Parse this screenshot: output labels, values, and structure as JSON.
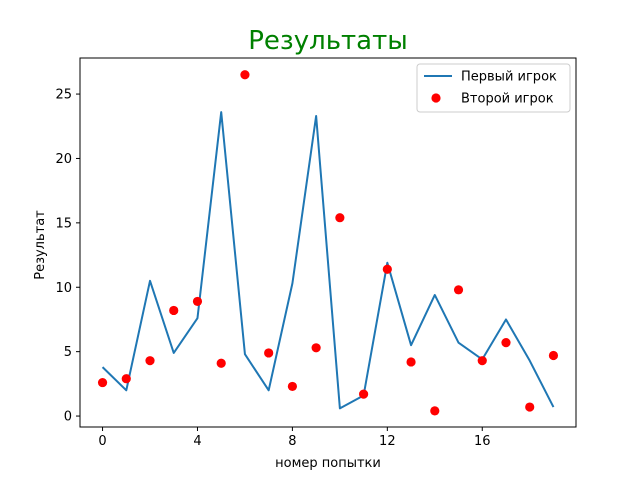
{
  "chart_data": {
    "type": "line",
    "title": "Результаты",
    "title_color": "#008000",
    "xlabel": "номер попытки",
    "ylabel": "Результат",
    "xlim": [
      -0.95,
      19.95
    ],
    "ylim": [
      -0.85,
      27.8
    ],
    "xticks": [
      0,
      4,
      8,
      12,
      16
    ],
    "yticks": [
      0,
      5,
      10,
      15,
      20,
      25
    ],
    "grid": false,
    "legend_position": "top-right",
    "series": [
      {
        "name": "Первый игрок",
        "type": "line",
        "color": "#1f77b4",
        "x": [
          0,
          1,
          2,
          3,
          4,
          5,
          6,
          7,
          8,
          9,
          10,
          11,
          12,
          13,
          14,
          15,
          16,
          17,
          18,
          19
        ],
        "y": [
          3.8,
          2.0,
          10.5,
          4.9,
          7.6,
          23.6,
          4.8,
          2.0,
          10.3,
          23.3,
          0.6,
          1.6,
          11.9,
          5.5,
          9.4,
          5.7,
          4.4,
          7.5,
          4.3,
          0.7
        ]
      },
      {
        "name": "Второй игрок",
        "type": "scatter",
        "color": "#ff0000",
        "x": [
          0,
          1,
          2,
          3,
          4,
          5,
          6,
          7,
          8,
          9,
          10,
          11,
          12,
          13,
          14,
          15,
          16,
          17,
          18,
          19
        ],
        "y": [
          2.6,
          2.9,
          4.3,
          8.2,
          8.9,
          4.1,
          26.5,
          4.9,
          2.3,
          5.3,
          15.4,
          1.7,
          11.4,
          4.2,
          0.4,
          9.8,
          4.3,
          5.7,
          0.7,
          4.7
        ]
      }
    ]
  }
}
